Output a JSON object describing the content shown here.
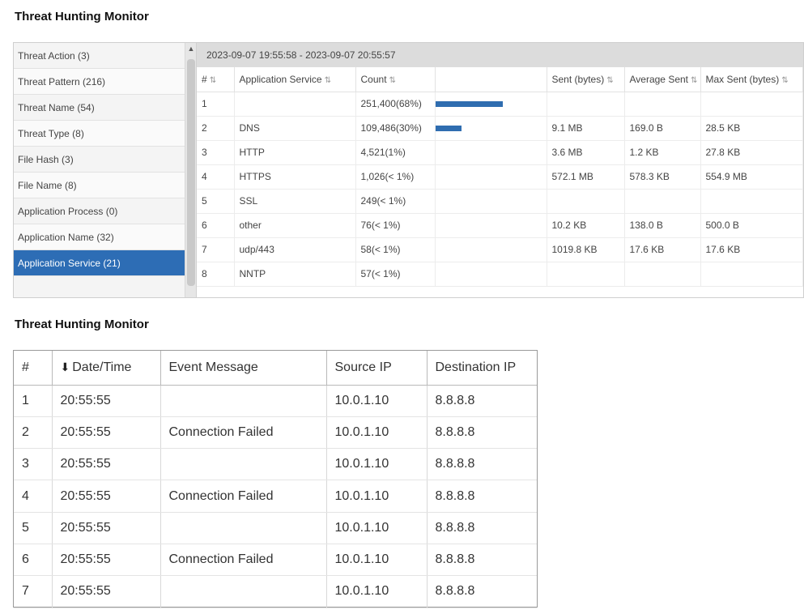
{
  "top_panel": {
    "title": "Threat Hunting Monitor",
    "sidebar": [
      {
        "label": "Threat Action (3)"
      },
      {
        "label": "Threat Pattern (216)"
      },
      {
        "label": "Threat Name (54)"
      },
      {
        "label": "Threat Type (8)"
      },
      {
        "label": "File Hash (3)"
      },
      {
        "label": "File Name (8)"
      },
      {
        "label": "Application Process (0)"
      },
      {
        "label": "Application Name (32)"
      },
      {
        "label": "Application Service (21)"
      }
    ],
    "active_index": 8,
    "time_range": "2023-09-07 19:55:58 - 2023-09-07 20:55:57",
    "columns": [
      "#",
      "Application Service",
      "Count",
      "",
      "Sent (bytes)",
      "Average Sent",
      "Max Sent (bytes)"
    ],
    "rows": [
      {
        "num": "1",
        "service": "",
        "count": "251,400(68%)",
        "pct": 68,
        "sent": "",
        "avg": "",
        "max": ""
      },
      {
        "num": "2",
        "service": "DNS",
        "count": "109,486(30%)",
        "pct": 30,
        "sent": "9.1 MB",
        "avg": "169.0 B",
        "max": "28.5 KB"
      },
      {
        "num": "3",
        "service": "HTTP",
        "count": "4,521(1%)",
        "pct": 1,
        "sent": "3.6 MB",
        "avg": "1.2 KB",
        "max": "27.8 KB"
      },
      {
        "num": "4",
        "service": "HTTPS",
        "count": "1,026(< 1%)",
        "pct": 0,
        "sent": "572.1 MB",
        "avg": "578.3 KB",
        "max": "554.9 MB"
      },
      {
        "num": "5",
        "service": "SSL",
        "count": "249(< 1%)",
        "pct": 0,
        "sent": "",
        "avg": "",
        "max": ""
      },
      {
        "num": "6",
        "service": "other",
        "count": "76(< 1%)",
        "pct": 0,
        "sent": "10.2 KB",
        "avg": "138.0 B",
        "max": "500.0 B"
      },
      {
        "num": "7",
        "service": "udp/443",
        "count": "58(< 1%)",
        "pct": 0,
        "sent": "1019.8 KB",
        "avg": "17.6 KB",
        "max": "17.6 KB"
      },
      {
        "num": "8",
        "service": "NNTP",
        "count": "57(< 1%)",
        "pct": 0,
        "sent": "",
        "avg": "",
        "max": ""
      }
    ],
    "bar_color": "#2f6db0"
  },
  "bottom_panel": {
    "title": "Threat Hunting Monitor",
    "columns": [
      "#",
      "Date/Time",
      "Event Message",
      "Source IP",
      "Destination IP"
    ],
    "rows": [
      {
        "num": "1",
        "time": "20:55:55",
        "message": "",
        "src": "10.0.1.10",
        "dst": "8.8.8.8"
      },
      {
        "num": "2",
        "time": "20:55:55",
        "message": "Connection Failed",
        "src": "10.0.1.10",
        "dst": "8.8.8.8"
      },
      {
        "num": "3",
        "time": "20:55:55",
        "message": "",
        "src": "10.0.1.10",
        "dst": "8.8.8.8"
      },
      {
        "num": "4",
        "time": "20:55:55",
        "message": "Connection Failed",
        "src": "10.0.1.10",
        "dst": "8.8.8.8"
      },
      {
        "num": "5",
        "time": "20:55:55",
        "message": "",
        "src": "10.0.1.10",
        "dst": "8.8.8.8"
      },
      {
        "num": "6",
        "time": "20:55:55",
        "message": "Connection Failed",
        "src": "10.0.1.10",
        "dst": "8.8.8.8"
      },
      {
        "num": "7",
        "time": "20:55:55",
        "message": "",
        "src": "10.0.1.10",
        "dst": "8.8.8.8"
      }
    ]
  }
}
